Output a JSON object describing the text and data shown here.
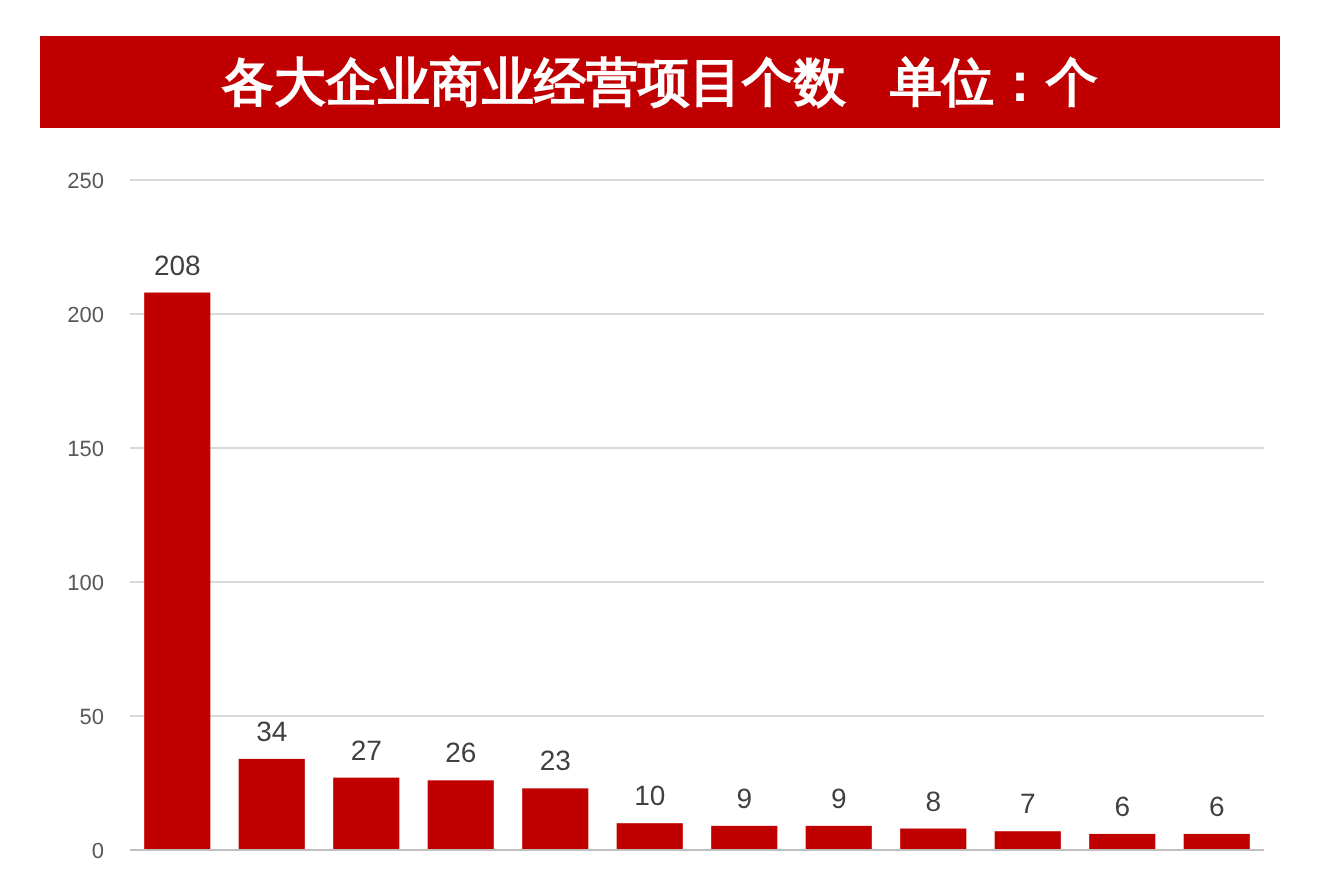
{
  "chart_data": {
    "type": "bar",
    "title": "各大企业商业经营项目个数   单位：个",
    "categories": [
      null,
      null,
      null,
      null,
      null,
      null,
      null,
      null,
      null,
      null,
      null,
      null
    ],
    "values": [
      208,
      34,
      27,
      26,
      23,
      10,
      9,
      9,
      8,
      7,
      6,
      6
    ],
    "color": "#c00000",
    "ylim": [
      0,
      250
    ],
    "yticks": [
      0,
      50,
      100,
      150,
      200,
      250
    ],
    "grid": "y",
    "data_labels": true
  }
}
